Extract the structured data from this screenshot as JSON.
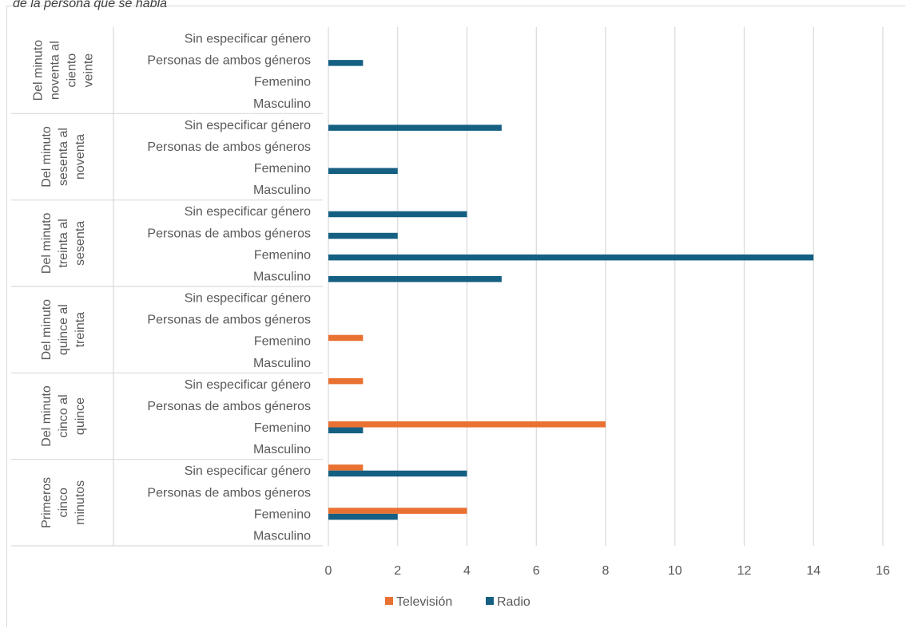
{
  "chart_data": {
    "type": "bar",
    "orientation": "horizontal",
    "title": "de la persona que se habla",
    "xlabel": "",
    "ylabel": "",
    "xlim": [
      0,
      16
    ],
    "x_ticks": [
      0,
      2,
      4,
      6,
      8,
      10,
      12,
      14,
      16
    ],
    "grid": true,
    "legend_position": "bottom",
    "groups": [
      {
        "name": "Del minuto noventa al ciento veinte",
        "label_lines": [
          "Del minuto",
          "noventa al",
          "ciento",
          "veinte"
        ]
      },
      {
        "name": "Del minuto sesenta al noventa",
        "label_lines": [
          "Del minuto",
          "sesenta al",
          "noventa"
        ]
      },
      {
        "name": "Del minuto treinta al sesenta",
        "label_lines": [
          "Del minuto",
          "treinta al",
          "sesenta"
        ]
      },
      {
        "name": "Del minuto quince al treinta",
        "label_lines": [
          "Del minuto",
          "quince al",
          "treinta"
        ]
      },
      {
        "name": "Del minuto cinco al quince",
        "label_lines": [
          "Del minuto",
          "cinco al",
          "quince"
        ]
      },
      {
        "name": "Primeros cinco minutos",
        "label_lines": [
          "Primeros",
          "cinco",
          "minutos"
        ]
      }
    ],
    "categories": [
      "Sin especificar género",
      "Personas de ambos géneros",
      "Femenino",
      "Masculino"
    ],
    "series": [
      {
        "name": "Televisión",
        "color": "#E97132",
        "values": [
          [
            0,
            0,
            0,
            0
          ],
          [
            0,
            0,
            0,
            0
          ],
          [
            0,
            0,
            0,
            0
          ],
          [
            0,
            0,
            1,
            0
          ],
          [
            1,
            0,
            8,
            0
          ],
          [
            1,
            0,
            4,
            0
          ]
        ]
      },
      {
        "name": "Radio",
        "color": "#156082",
        "values": [
          [
            0,
            1,
            0,
            0
          ],
          [
            5,
            0,
            2,
            0
          ],
          [
            4,
            2,
            14,
            5
          ],
          [
            0,
            0,
            0,
            0
          ],
          [
            0,
            0,
            1,
            0
          ],
          [
            4,
            0,
            2,
            0
          ]
        ]
      }
    ]
  }
}
